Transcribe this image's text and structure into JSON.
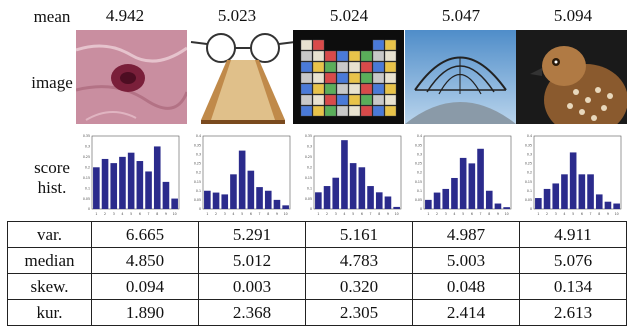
{
  "labels": {
    "mean": "mean",
    "image": "image",
    "score": "score",
    "hist": "hist."
  },
  "means": [
    "4.942",
    "5.023",
    "5.024",
    "5.047",
    "5.094"
  ],
  "chart_data": [
    {
      "type": "bar",
      "title": "",
      "categories": [
        "1",
        "2",
        "3",
        "4",
        "5",
        "6",
        "7",
        "8",
        "9",
        "10"
      ],
      "values": [
        0.2,
        0.24,
        0.22,
        0.25,
        0.27,
        0.23,
        0.18,
        0.3,
        0.13,
        0.05
      ],
      "ylim": [
        0,
        0.35
      ],
      "yticks": [
        "0",
        "0.05",
        "0.1",
        "0.15",
        "0.2",
        "0.25",
        "0.3",
        "0.35"
      ]
    },
    {
      "type": "bar",
      "title": "",
      "categories": [
        "1",
        "2",
        "3",
        "4",
        "5",
        "6",
        "7",
        "8",
        "9",
        "10"
      ],
      "values": [
        0.1,
        0.09,
        0.08,
        0.19,
        0.32,
        0.21,
        0.12,
        0.1,
        0.05,
        0.02
      ],
      "ylim": [
        0,
        0.4
      ],
      "yticks": [
        "0",
        "0.05",
        "0.1",
        "0.15",
        "0.2",
        "0.25",
        "0.3",
        "0.35",
        "0.4"
      ]
    },
    {
      "type": "bar",
      "title": "",
      "categories": [
        "1",
        "2",
        "3",
        "4",
        "5",
        "6",
        "7",
        "8",
        "9",
        "10"
      ],
      "values": [
        0.08,
        0.11,
        0.15,
        0.33,
        0.22,
        0.2,
        0.11,
        0.08,
        0.06,
        0.01
      ],
      "ylim": [
        0,
        0.35
      ],
      "yticks": [
        "0",
        "0.05",
        "0.1",
        "0.15",
        "0.2",
        "0.25",
        "0.3",
        "0.35"
      ]
    },
    {
      "type": "bar",
      "title": "",
      "categories": [
        "1",
        "2",
        "3",
        "4",
        "5",
        "6",
        "7",
        "8",
        "9",
        "10"
      ],
      "values": [
        0.05,
        0.09,
        0.11,
        0.17,
        0.28,
        0.25,
        0.33,
        0.1,
        0.03,
        0.01
      ],
      "ylim": [
        0,
        0.4
      ],
      "yticks": [
        "0",
        "0.05",
        "0.1",
        "0.15",
        "0.2",
        "0.25",
        "0.3",
        "0.35",
        "0.4"
      ]
    },
    {
      "type": "bar",
      "title": "",
      "categories": [
        "1",
        "2",
        "3",
        "4",
        "5",
        "6",
        "7",
        "8",
        "9",
        "10"
      ],
      "values": [
        0.06,
        0.11,
        0.14,
        0.19,
        0.31,
        0.19,
        0.19,
        0.08,
        0.04,
        0.03
      ],
      "ylim": [
        0,
        0.4
      ],
      "yticks": [
        "0",
        "0.05",
        "0.1",
        "0.15",
        "0.2",
        "0.25",
        "0.3",
        "0.35",
        "0.4"
      ]
    }
  ],
  "stats": [
    {
      "label": "var.",
      "values": [
        "6.665",
        "5.291",
        "5.161",
        "4.987",
        "4.911"
      ]
    },
    {
      "label": "median",
      "values": [
        "4.850",
        "5.012",
        "4.783",
        "5.003",
        "5.076"
      ]
    },
    {
      "label": "skew.",
      "values": [
        "0.094",
        "0.003",
        "0.320",
        "0.048",
        "0.134"
      ]
    },
    {
      "label": "kur.",
      "values": [
        "1.890",
        "2.368",
        "2.305",
        "2.414",
        "2.613"
      ]
    }
  ],
  "images": [
    "pink-tissue-closeup",
    "book-with-glasses",
    "letter-blocks-wall",
    "metal-arch-structure",
    "hawk-portrait"
  ],
  "colors": {
    "bar": "#2b2b8c",
    "axis": "#555555"
  }
}
